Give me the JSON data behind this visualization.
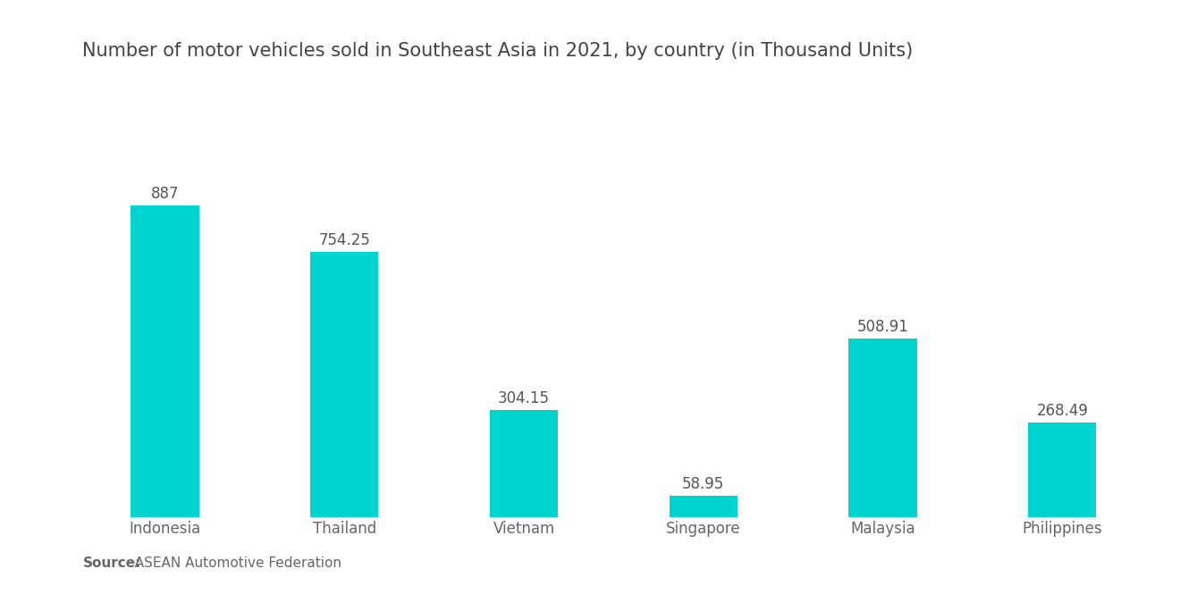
{
  "title": "Number of motor vehicles sold in Southeast Asia in 2021, by country (in Thousand Units)",
  "categories": [
    "Indonesia",
    "Thailand",
    "Vietnam",
    "Singapore",
    "Malaysia",
    "Philippines"
  ],
  "values": [
    887,
    754.25,
    304.15,
    58.95,
    508.91,
    268.49
  ],
  "bar_color": "#00D4CF",
  "value_color": "#555555",
  "label_color": "#666666",
  "title_color": "#444444",
  "background_color": "#ffffff",
  "ylim": [
    0,
    1050
  ],
  "title_fontsize": 15,
  "label_fontsize": 12,
  "value_fontsize": 12,
  "source_bold": "Source:",
  "source_normal": "  ASEAN Automotive Federation",
  "source_fontsize": 11
}
